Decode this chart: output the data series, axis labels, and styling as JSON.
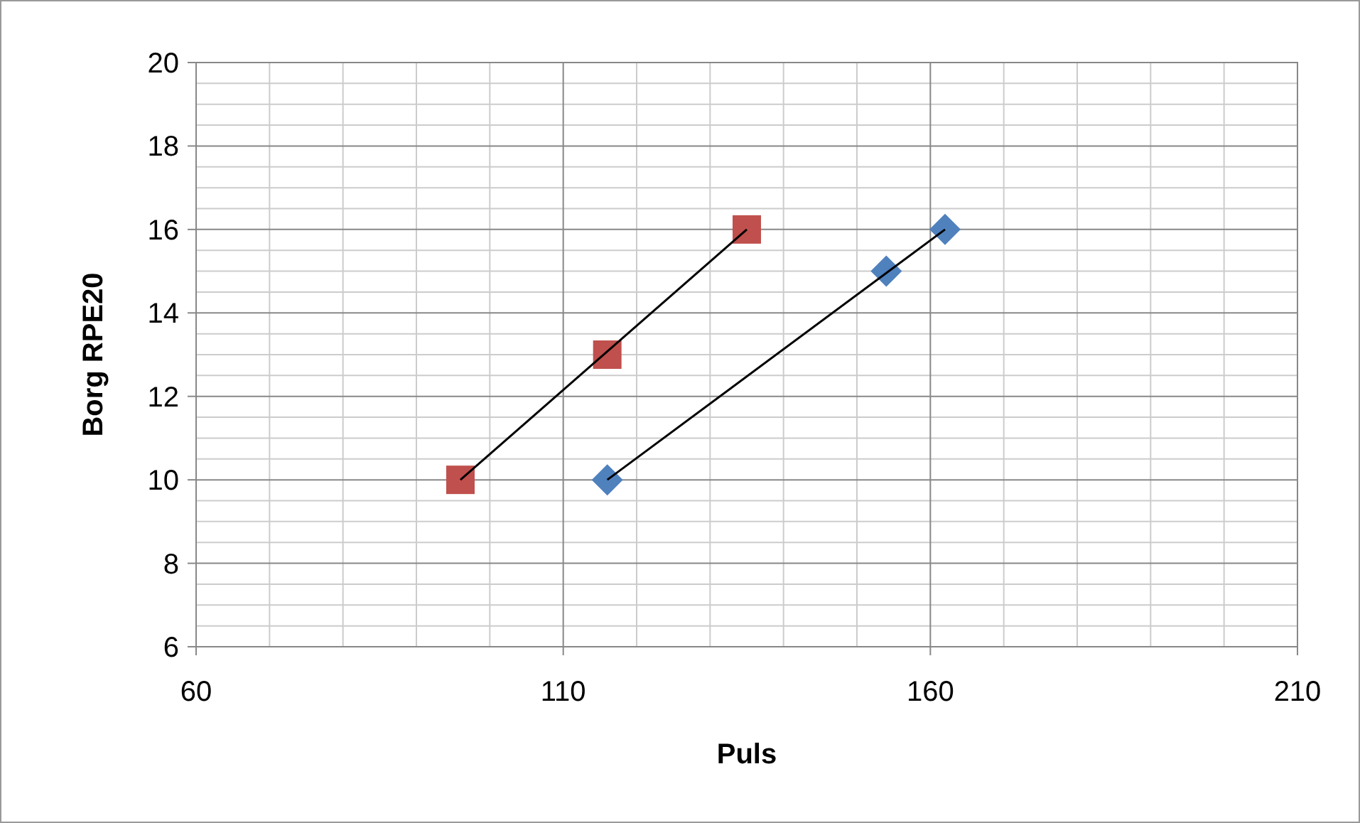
{
  "chart_data": {
    "type": "scatter",
    "xlabel": "Puls",
    "ylabel": "Borg RPE20",
    "xlim": [
      60,
      210
    ],
    "xticks": [
      60,
      110,
      160,
      210
    ],
    "ylim": [
      6,
      20
    ],
    "yticks": [
      6,
      8,
      10,
      12,
      14,
      16,
      18,
      20
    ],
    "grid": true,
    "series": [
      {
        "color": "#c0504d",
        "marker": "square",
        "x": [
          96,
          116,
          135
        ],
        "values": [
          10,
          13,
          16
        ]
      },
      {
        "color": "#4f81bd",
        "marker": "diamond",
        "x": [
          116,
          154,
          162
        ],
        "values": [
          10,
          15,
          16
        ]
      },
      {
        "type": "line",
        "color": "#000000",
        "marker": "none",
        "x": [
          96,
          135
        ],
        "values": [
          10,
          16
        ]
      },
      {
        "type": "line",
        "color": "#000000",
        "marker": "none",
        "x": [
          116,
          162
        ],
        "values": [
          10,
          16
        ]
      }
    ]
  }
}
